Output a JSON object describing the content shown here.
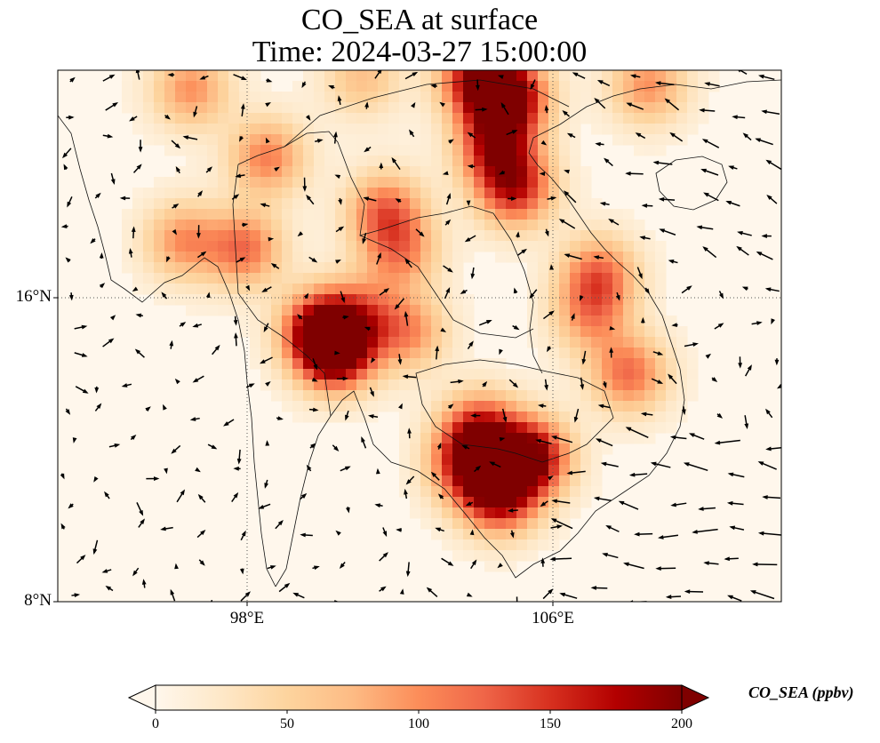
{
  "title": {
    "line1": "CO_SEA at surface",
    "line2": "Time: 2024-03-27 15:00:00"
  },
  "map": {
    "variable": "CO_SEA",
    "level": "surface",
    "projection": "PlateCarree",
    "extent_lon": [
      93.0,
      112.0
    ],
    "extent_lat": [
      8.0,
      22.0
    ],
    "lat_labels": [
      "16°N",
      "8°N"
    ],
    "lon_labels": [
      "98°E",
      "106°E"
    ],
    "gridlines": "dotted",
    "overlay": "wind vectors (quiver)",
    "colormap": "OrRd",
    "hotspots": [
      {
        "lon": 104.8,
        "lat": 21.3,
        "value": 210
      },
      {
        "lon": 104.5,
        "lat": 20.0,
        "value": 150
      },
      {
        "lon": 105.0,
        "lat": 18.9,
        "value": 150
      },
      {
        "lon": 100.3,
        "lat": 14.6,
        "value": 210
      },
      {
        "lon": 99.9,
        "lat": 15.2,
        "value": 160
      },
      {
        "lon": 105.4,
        "lat": 11.8,
        "value": 200
      },
      {
        "lon": 104.6,
        "lat": 10.8,
        "value": 170
      },
      {
        "lon": 104.1,
        "lat": 12.5,
        "value": 140
      },
      {
        "lon": 103.8,
        "lat": 11.6,
        "value": 150
      },
      {
        "lon": 101.6,
        "lat": 18.3,
        "value": 110
      },
      {
        "lon": 102.0,
        "lat": 17.2,
        "value": 90
      },
      {
        "lon": 102.2,
        "lat": 15.1,
        "value": 90
      },
      {
        "lon": 101.0,
        "lat": 15.6,
        "value": 80
      },
      {
        "lon": 97.9,
        "lat": 17.3,
        "value": 110
      },
      {
        "lon": 96.3,
        "lat": 17.5,
        "value": 90
      },
      {
        "lon": 98.5,
        "lat": 19.7,
        "value": 100
      },
      {
        "lon": 107.2,
        "lat": 16.6,
        "value": 110
      },
      {
        "lon": 108.0,
        "lat": 14.0,
        "value": 110
      },
      {
        "lon": 101.0,
        "lat": 21.8,
        "value": 60
      },
      {
        "lon": 96.5,
        "lat": 21.5,
        "value": 90
      },
      {
        "lon": 104.0,
        "lat": 21.8,
        "value": 150
      },
      {
        "lon": 108.5,
        "lat": 21.6,
        "value": 90
      },
      {
        "lon": 107.0,
        "lat": 15.5,
        "value": 80
      }
    ]
  },
  "colorbar": {
    "label": "CO_SEA (ppbv)",
    "min": 0,
    "max": 200,
    "ticks": [
      "0",
      "50",
      "100",
      "150",
      "200"
    ],
    "extend": "both",
    "colors": [
      "#fff7ec",
      "#fee8c8",
      "#fdd49e",
      "#fdbb84",
      "#fc8d59",
      "#ef6548",
      "#d7301f",
      "#b30000",
      "#7f0000"
    ]
  }
}
